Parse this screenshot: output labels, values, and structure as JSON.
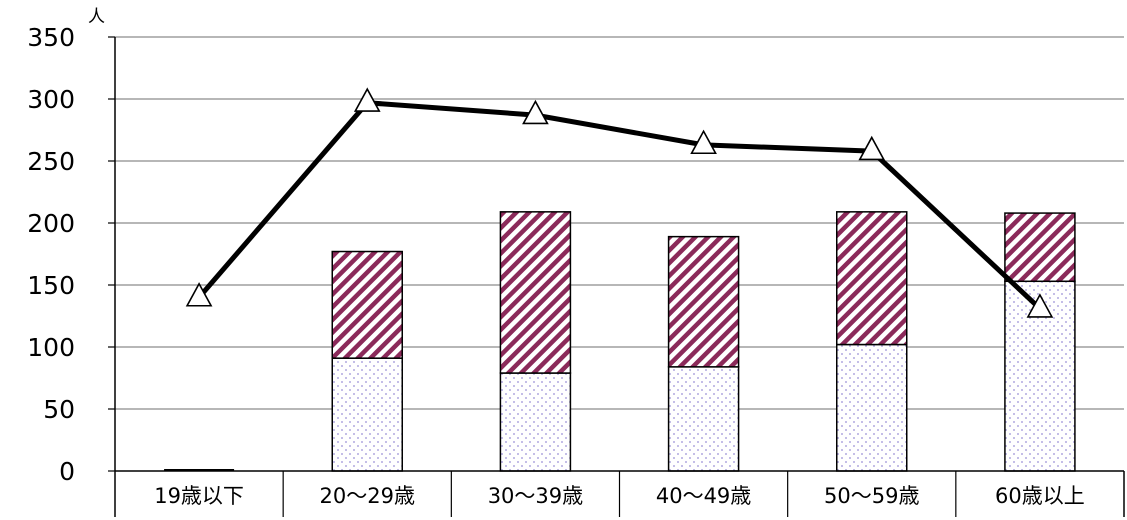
{
  "chart_data": {
    "type": "bar",
    "stacked": true,
    "categories": [
      "19歳以下",
      "20〜29歳",
      "30〜39歳",
      "40〜49歳",
      "50〜59歳",
      "60歳以上"
    ],
    "ylabel": "人",
    "ylim": [
      0,
      350
    ],
    "yticks": [
      0,
      50,
      100,
      150,
      200,
      250,
      300,
      350
    ],
    "grid": true,
    "series": [
      {
        "kind": "bar",
        "pattern": "dotted",
        "color": "#9b8fd6",
        "values": [
          0,
          91,
          79,
          84,
          102,
          153
        ]
      },
      {
        "kind": "bar",
        "pattern": "diagonal-hatch",
        "color": "#8b2a5a",
        "values": [
          0,
          86,
          130,
          105,
          107,
          55
        ]
      },
      {
        "kind": "line",
        "marker": "triangle",
        "color": "#000000",
        "values": [
          140,
          297,
          287,
          263,
          258,
          131
        ]
      }
    ]
  }
}
